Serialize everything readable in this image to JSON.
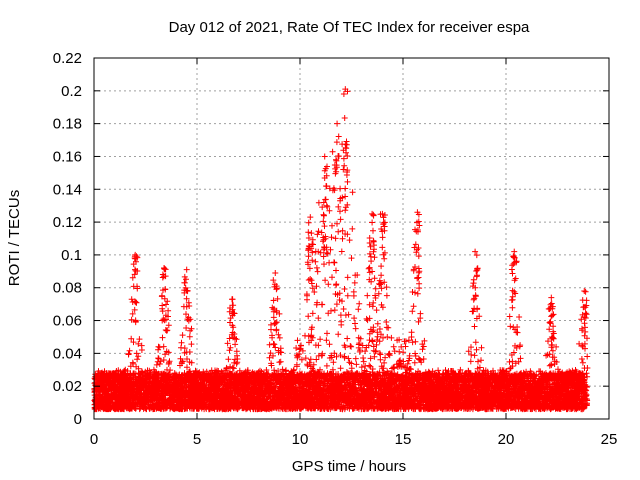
{
  "chart_data": {
    "type": "scatter",
    "title": "Day 012 of 2021, Rate Of TEC Index for receiver espa",
    "xlabel": "GPS time / hours",
    "ylabel": "ROTI / TECUs",
    "xlim": [
      0,
      25
    ],
    "ylim": [
      0,
      0.22
    ],
    "x_ticks": [
      "0",
      "5",
      "10",
      "15",
      "20",
      "25"
    ],
    "y_ticks": [
      "0",
      "0.02",
      "0.04",
      "0.06",
      "0.08",
      "0.1",
      "0.12",
      "0.14",
      "0.16",
      "0.18",
      "0.2",
      "0.22"
    ],
    "grid": true,
    "marker": "plus",
    "color": "#ff0000",
    "points_description": "dense ROTI samples every 30 s from 0 to 24 h",
    "peaks": [
      {
        "x": 2.0,
        "y": 0.1
      },
      {
        "x": 3.4,
        "y": 0.092
      },
      {
        "x": 4.5,
        "y": 0.091
      },
      {
        "x": 6.7,
        "y": 0.073
      },
      {
        "x": 8.8,
        "y": 0.089
      },
      {
        "x": 10.5,
        "y": 0.123
      },
      {
        "x": 11.2,
        "y": 0.16
      },
      {
        "x": 11.8,
        "y": 0.18
      },
      {
        "x": 12.2,
        "y": 0.201
      },
      {
        "x": 13.5,
        "y": 0.125
      },
      {
        "x": 14.0,
        "y": 0.125
      },
      {
        "x": 15.7,
        "y": 0.126
      },
      {
        "x": 18.5,
        "y": 0.102
      },
      {
        "x": 20.4,
        "y": 0.102
      },
      {
        "x": 22.2,
        "y": 0.074
      },
      {
        "x": 23.8,
        "y": 0.078
      }
    ]
  }
}
